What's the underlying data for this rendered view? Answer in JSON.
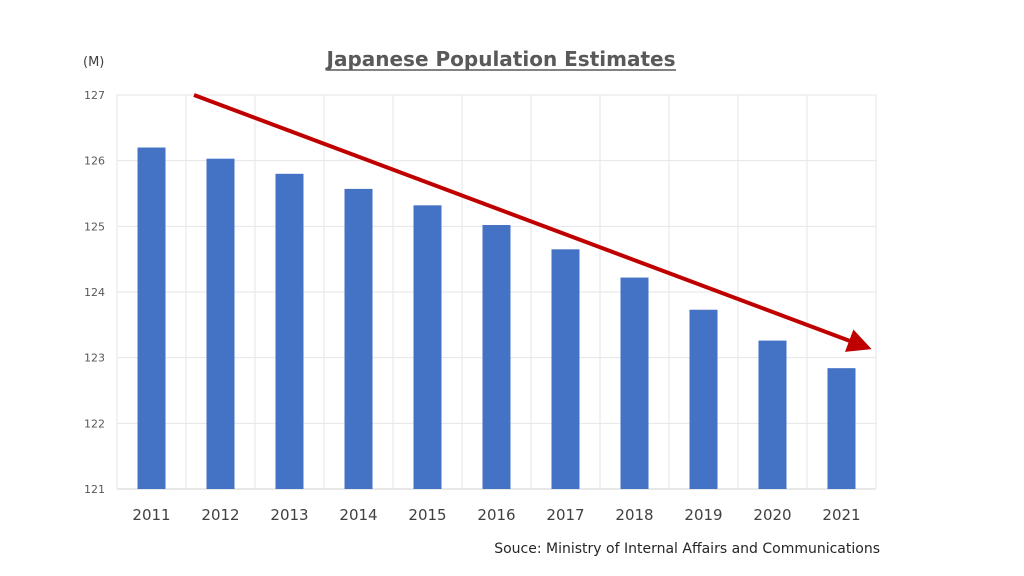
{
  "chart_data": {
    "type": "bar",
    "title": "Japanese Population Estimates",
    "unit_label": "(M)",
    "categories": [
      "2011",
      "2012",
      "2013",
      "2014",
      "2015",
      "2016",
      "2017",
      "2018",
      "2019",
      "2020",
      "2021"
    ],
    "values": [
      126.2,
      126.03,
      125.8,
      125.57,
      125.32,
      125.02,
      124.65,
      124.22,
      123.73,
      123.26,
      122.84
    ],
    "ylim": [
      121,
      127
    ],
    "yticks": [
      121,
      122,
      123,
      124,
      125,
      126,
      127
    ],
    "grid": true,
    "bar_color": "#4472C4",
    "trend_arrow": {
      "color": "#C00000",
      "direction": "down"
    },
    "source": "Souce: Ministry of Internal Affairs and Communications"
  }
}
